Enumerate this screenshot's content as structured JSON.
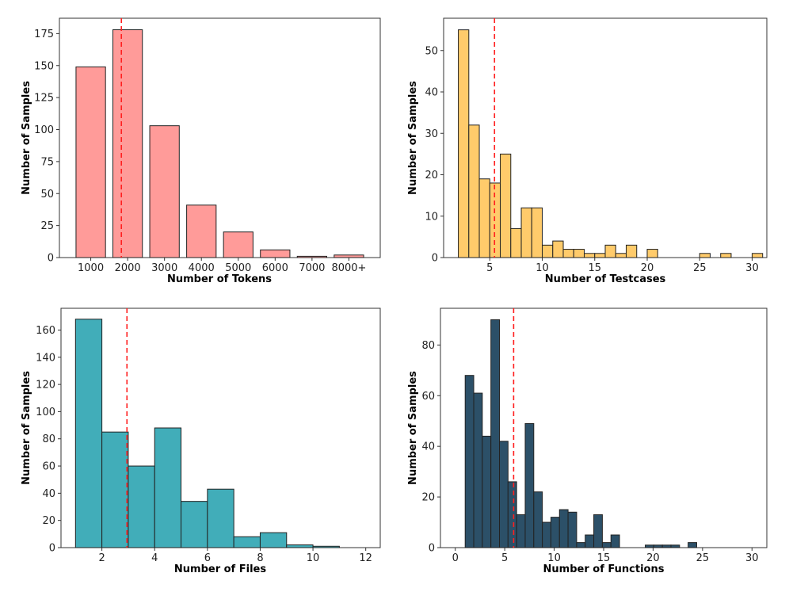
{
  "figure": {
    "mean_line_color": "#ff2020",
    "edge_color": "#222222"
  },
  "chart_data": [
    {
      "id": "tokens",
      "type": "bar",
      "color": "#ff9b99",
      "xlabel": "Number of Tokens",
      "ylabel": "Number of Samples",
      "categories": [
        "1000",
        "2000",
        "3000",
        "4000",
        "5000",
        "6000",
        "7000",
        "8000+"
      ],
      "values": [
        149,
        178,
        103,
        41,
        20,
        6,
        1,
        2
      ],
      "xlim": [
        0.15,
        8.85
      ],
      "ylim": [
        0,
        187
      ],
      "yticks": [
        0,
        25,
        50,
        75,
        100,
        125,
        150,
        175
      ],
      "bar_width": 0.8,
      "mean_x": 1.83
    },
    {
      "id": "testcases",
      "type": "bar",
      "color": "#ffcb6b",
      "xlabel": "Number of Testcases",
      "ylabel": "Number of Samples",
      "bins_start": 2,
      "bin_width": 1.0,
      "values": [
        55,
        32,
        19,
        18,
        25,
        7,
        12,
        12,
        3,
        4,
        2,
        2,
        1,
        1,
        3,
        1,
        3,
        0,
        2,
        0,
        0,
        0,
        0,
        1,
        0,
        1,
        0,
        0,
        1
      ],
      "xlim": [
        0.6,
        31.4
      ],
      "ylim": [
        0,
        57.8
      ],
      "xticks": [
        5,
        10,
        15,
        20,
        25,
        30
      ],
      "yticks": [
        0,
        10,
        20,
        30,
        40,
        50
      ],
      "mean_x": 5.45
    },
    {
      "id": "files",
      "type": "bar",
      "color": "#41adb9",
      "xlabel": "Number of Files",
      "ylabel": "Number of Samples",
      "bins_start": 1,
      "bin_width": 1.0,
      "values": [
        168,
        85,
        60,
        88,
        34,
        43,
        8,
        11,
        2,
        1,
        0
      ],
      "xlim": [
        0.45,
        12.55
      ],
      "ylim": [
        0,
        176
      ],
      "xticks": [
        2,
        4,
        6,
        8,
        10,
        12
      ],
      "yticks": [
        0,
        20,
        40,
        60,
        80,
        100,
        120,
        140,
        160
      ],
      "mean_x": 2.95
    },
    {
      "id": "functions",
      "type": "bar",
      "color": "#2c5068",
      "xlabel": "Number of Functions",
      "ylabel": "Number of Samples",
      "bins_start": 1,
      "bin_width": 0.867,
      "values": [
        68,
        61,
        44,
        90,
        42,
        26,
        13,
        49,
        22,
        10,
        12,
        15,
        14,
        2,
        5,
        13,
        2,
        5,
        0,
        0,
        0,
        1,
        1,
        1,
        1,
        0,
        2,
        0,
        0,
        0
      ],
      "xlim": [
        -1.5,
        31.5
      ],
      "ylim": [
        0,
        94.5
      ],
      "xticks": [
        0,
        5,
        10,
        15,
        20,
        25,
        30
      ],
      "yticks": [
        0,
        20,
        40,
        60,
        80
      ],
      "mean_x": 5.9
    }
  ]
}
